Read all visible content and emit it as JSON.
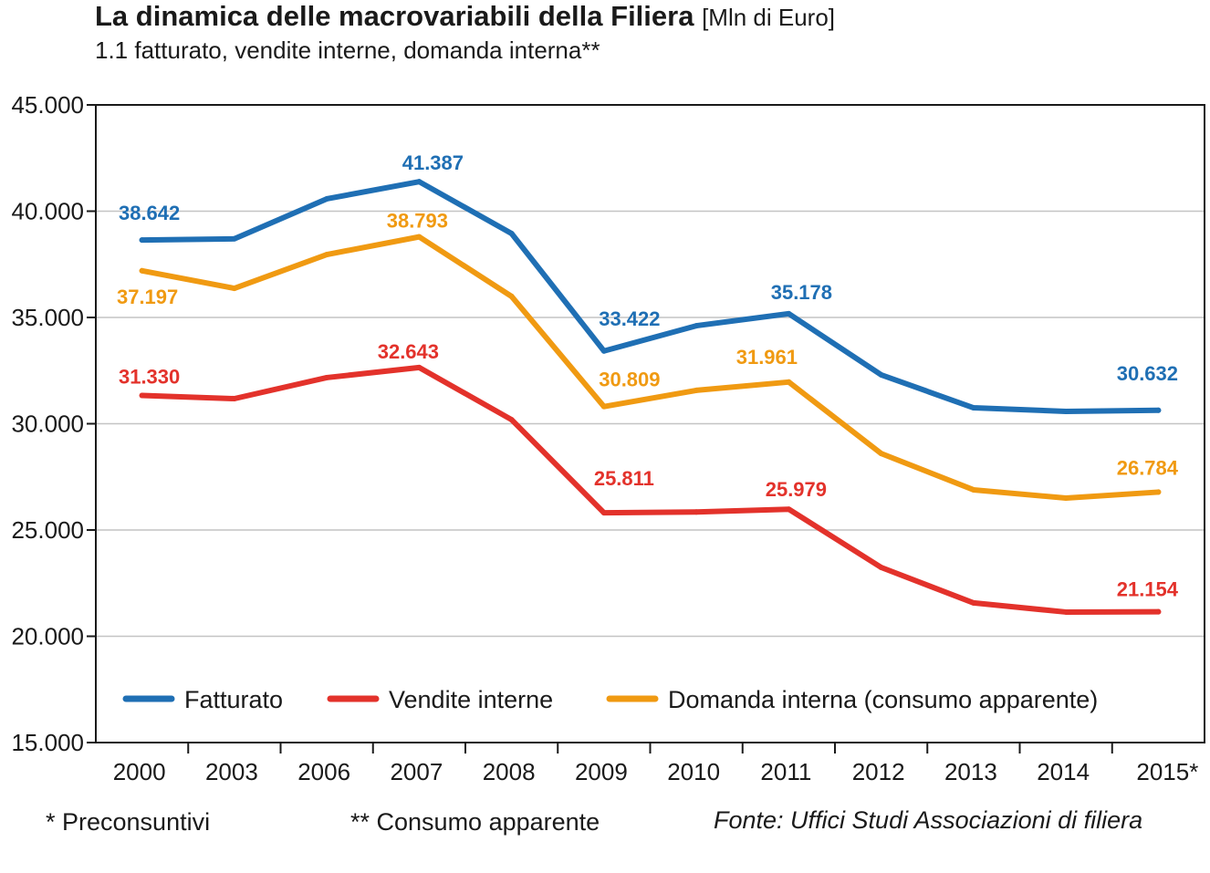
{
  "chart_data": {
    "type": "line",
    "title": "La dinamica delle macrovariabili della Filiera",
    "title_unit": "[Mln di Euro]",
    "subtitle": "1.1 fatturato, vendite interne, domanda interna**",
    "xlabel": "",
    "ylabel": "",
    "ylim": [
      15000,
      45000
    ],
    "yticks": [
      15000,
      20000,
      25000,
      30000,
      35000,
      40000,
      45000
    ],
    "ytick_labels": [
      "15.000",
      "20.000",
      "25.000",
      "30.000",
      "35.000",
      "40.000",
      "45.000"
    ],
    "grid": true,
    "legend_placement": "bottom-inside",
    "categories": [
      "2000",
      "2003",
      "2006",
      "2007",
      "2008",
      "2009",
      "2010",
      "2011",
      "2012",
      "2013",
      "2014",
      "2015*"
    ],
    "series": [
      {
        "name": "Fatturato",
        "color": "#1f6fb4",
        "values": [
          38642,
          38700,
          40580,
          41387,
          38950,
          33422,
          34610,
          35178,
          32300,
          30750,
          30580,
          30632
        ],
        "labels": [
          "38.642",
          null,
          null,
          "41.387",
          null,
          "33.422",
          null,
          "35.178",
          null,
          null,
          null,
          "30.632"
        ]
      },
      {
        "name": "Vendite interne",
        "color": "#e3322b",
        "values": [
          31330,
          31180,
          32170,
          32643,
          30190,
          25811,
          25850,
          25979,
          23240,
          21570,
          21140,
          21154
        ],
        "labels": [
          "31.330",
          null,
          null,
          "32.643",
          null,
          "25.811",
          null,
          "25.979",
          null,
          null,
          null,
          "21.154"
        ]
      },
      {
        "name": "Domanda interna (consumo apparente)",
        "color": "#f09a12",
        "values": [
          37197,
          36370,
          37960,
          38793,
          35990,
          30809,
          31570,
          31961,
          28600,
          26890,
          26500,
          26784
        ],
        "labels": [
          "37.197",
          null,
          null,
          "38.793",
          null,
          "30.809",
          null,
          "31.961",
          null,
          null,
          null,
          "26.784"
        ]
      }
    ]
  },
  "footnotes": {
    "note1": "* Preconsuntivi",
    "note2": "** Consumo apparente",
    "source": "Fonte: Uffici Studi Associazioni di filiera"
  }
}
